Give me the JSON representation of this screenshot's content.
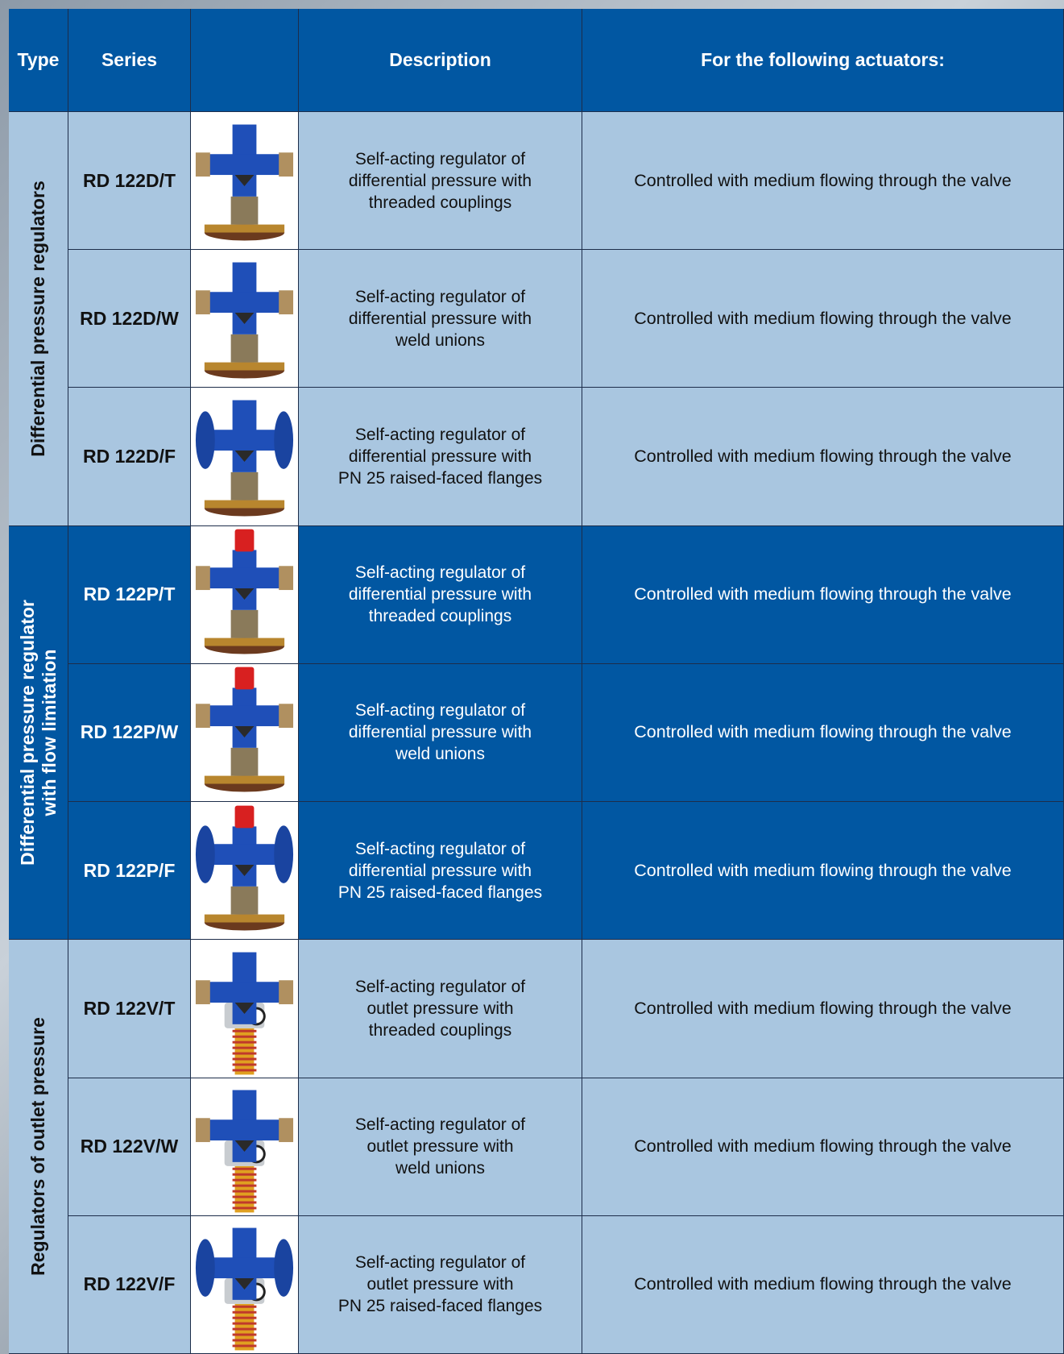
{
  "table": {
    "header": {
      "type": "Type",
      "series": "Series",
      "description": "Description",
      "actuators": "For the following actuators:"
    },
    "groups": [
      {
        "type": [
          "Differential pressure regulators"
        ],
        "rows": [
          {
            "series": "RD 122D/T",
            "description": [
              "Self-acting regulator of",
              "differential pressure with",
              "threaded couplings"
            ],
            "actuators": "Controlled with medium flowing through the valve"
          },
          {
            "series": "RD 122D/W",
            "description": [
              "Self-acting regulator of",
              "differential pressure with",
              "weld unions"
            ],
            "actuators": "Controlled with medium flowing through the valve"
          },
          {
            "series": "RD 122D/F",
            "description": [
              "Self-acting regulator of",
              "differential pressure with",
              "PN 25 raised-faced flanges"
            ],
            "actuators": "Controlled with medium flowing through the valve"
          }
        ]
      },
      {
        "type": [
          "Differential pressure regulator",
          "with flow limitation"
        ],
        "rows": [
          {
            "series": "RD 122P/T",
            "description": [
              "Self-acting regulator of",
              "differential pressure with",
              "threaded couplings"
            ],
            "actuators": "Controlled with medium flowing through the valve"
          },
          {
            "series": "RD 122P/W",
            "description": [
              "Self-acting regulator of",
              "differential pressure with",
              "weld unions"
            ],
            "actuators": "Controlled with medium flowing through the valve"
          },
          {
            "series": "RD 122P/F",
            "description": [
              "Self-acting regulator of",
              "differential pressure with",
              "PN 25 raised-faced flanges"
            ],
            "actuators": "Controlled with medium flowing through the valve"
          }
        ]
      },
      {
        "type": [
          "Regulators of outlet pressure"
        ],
        "rows": [
          {
            "series": "RD 122V/T",
            "description": [
              "Self-acting regulator of",
              "outlet pressure with",
              "threaded couplings"
            ],
            "actuators": "Controlled with medium flowing through the valve"
          },
          {
            "series": "RD 122V/W",
            "description": [
              "Self-acting regulator of",
              "outlet pressure with",
              "weld unions"
            ],
            "actuators": "Controlled with medium flowing through the valve"
          },
          {
            "series": "RD 122V/F",
            "description": [
              "Self-acting regulator of",
              "outlet pressure with",
              "PN 25 raised-faced flanges"
            ],
            "actuators": "Controlled with medium flowing through the valve"
          }
        ]
      }
    ]
  }
}
